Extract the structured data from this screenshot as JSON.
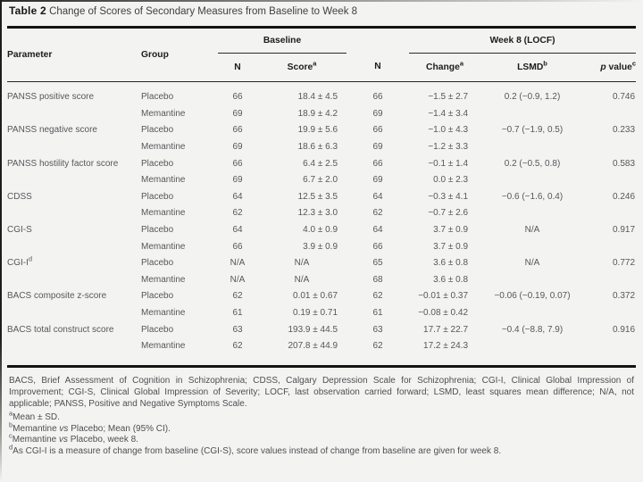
{
  "title": {
    "label": "Table 2",
    "caption": "Change of Scores of Secondary Measures from Baseline to Week 8"
  },
  "colors": {
    "background": "#f3f3f1",
    "heading_text": "#1c1c1c",
    "body_text": "#56575b",
    "rule": "#141414"
  },
  "header": {
    "parameter": "Parameter",
    "group": "Group",
    "baseline": "Baseline",
    "week8": "Week 8 (LOCF)",
    "n1": "N",
    "score": "Score",
    "score_sup": "a",
    "n2": "N",
    "change": "Change",
    "change_sup": "a",
    "lsmd": "LSMD",
    "lsmd_sup": "b",
    "pvalue_p": "p",
    "pvalue_rest": " value",
    "pvalue_sup": "c"
  },
  "rows": [
    {
      "param": "PANSS positive score",
      "group": "Placebo",
      "n1": "66",
      "score": "18.4 ± 4.5",
      "n2": "66",
      "change": "−1.5 ± 2.7",
      "lsmd": "0.2 (−0.9, 1.2)",
      "p": "0.746"
    },
    {
      "param": "",
      "group": "Memantine",
      "n1": "69",
      "score": "18.9 ± 4.2",
      "n2": "69",
      "change": "−1.4 ± 3.4",
      "lsmd": "",
      "p": ""
    },
    {
      "param": "PANSS negative score",
      "group": "Placebo",
      "n1": "66",
      "score": "19.9 ± 5.6",
      "n2": "66",
      "change": "−1.0 ± 4.3",
      "lsmd": "−0.7 (−1.9, 0.5)",
      "p": "0.233"
    },
    {
      "param": "",
      "group": "Memantine",
      "n1": "69",
      "score": "18.6 ± 6.3",
      "n2": "69",
      "change": "−1.2 ± 3.3",
      "lsmd": "",
      "p": ""
    },
    {
      "param": "PANSS hostility factor score",
      "group": "Placebo",
      "n1": "66",
      "score": "6.4 ± 2.5",
      "n2": "66",
      "change": "−0.1 ± 1.4",
      "lsmd": "0.2 (−0.5, 0.8)",
      "p": "0.583"
    },
    {
      "param": "",
      "group": "Memantine",
      "n1": "69",
      "score": "6.7 ± 2.0",
      "n2": "69",
      "change": "0.0 ± 2.3",
      "lsmd": "",
      "p": ""
    },
    {
      "param": "CDSS",
      "group": "Placebo",
      "n1": "64",
      "score": "12.5 ± 3.5",
      "n2": "64",
      "change": "−0.3 ± 4.1",
      "lsmd": "−0.6 (−1.6, 0.4)",
      "p": "0.246"
    },
    {
      "param": "",
      "group": "Memantine",
      "n1": "62",
      "score": "12.3 ± 3.0",
      "n2": "62",
      "change": "−0.7 ± 2.6",
      "lsmd": "",
      "p": ""
    },
    {
      "param": "CGI-S",
      "group": "Placebo",
      "n1": "64",
      "score": "4.0 ± 0.9",
      "n2": "64",
      "change": "3.7 ± 0.9",
      "lsmd": "N/A",
      "p": "0.917"
    },
    {
      "param": "",
      "group": "Memantine",
      "n1": "66",
      "score": "3.9 ± 0.9",
      "n2": "66",
      "change": "3.7 ± 0.9",
      "lsmd": "",
      "p": ""
    },
    {
      "param": "CGI-I",
      "sup": "d",
      "group": "Placebo",
      "n1": "N/A",
      "score": "N/A",
      "n2": "65",
      "change": "3.6 ± 0.8",
      "lsmd": "N/A",
      "p": "0.772"
    },
    {
      "param": "",
      "group": "Memantine",
      "n1": "N/A",
      "score": "N/A",
      "n2": "68",
      "change": "3.6 ± 0.8",
      "lsmd": "",
      "p": ""
    },
    {
      "param": "BACS composite z-score",
      "group": "Placebo",
      "n1": "62",
      "score": "0.01 ± 0.67",
      "n2": "62",
      "change": "−0.01 ± 0.37",
      "lsmd": "−0.06 (−0.19, 0.07)",
      "p": "0.372"
    },
    {
      "param": "",
      "group": "Memantine",
      "n1": "61",
      "score": "0.19 ± 0.71",
      "n2": "61",
      "change": "−0.08 ± 0.42",
      "lsmd": "",
      "p": ""
    },
    {
      "param": "BACS total construct score",
      "group": "Placebo",
      "n1": "63",
      "score": "193.9 ± 44.5",
      "n2": "63",
      "change": "17.7 ± 22.7",
      "lsmd": "−0.4 (−8.8, 7.9)",
      "p": "0.916"
    },
    {
      "param": "",
      "group": "Memantine",
      "n1": "62",
      "score": "207.8 ± 44.9",
      "n2": "62",
      "change": "17.2 ± 24.3",
      "lsmd": "",
      "p": ""
    }
  ],
  "footer": {
    "abbreviations": "BACS, Brief Assessment of Cognition in Schizophrenia; CDSS, Calgary Depression Scale for Schizophrenia; CGI-I, Clinical Global Impression of Improvement; CGI-S, Clinical Global Impression of Severity; LOCF, last observation carried forward; LSMD, least squares mean difference; N/A, not applicable; PANSS, Positive and Negative Symptoms Scale.",
    "notes": [
      {
        "sup": "a",
        "t1": "Mean ± SD.",
        "vs": "",
        "t2": ""
      },
      {
        "sup": "b",
        "t1": "Memantine ",
        "vs": "vs",
        "t2": " Placebo; Mean (95% CI)."
      },
      {
        "sup": "c",
        "t1": "Memantine ",
        "vs": "vs",
        "t2": " Placebo, week 8."
      },
      {
        "sup": "d",
        "t1": "As CGI-I is a measure of change from baseline (CGI-S), score values instead of change from baseline are given for week 8.",
        "vs": "",
        "t2": ""
      }
    ]
  }
}
